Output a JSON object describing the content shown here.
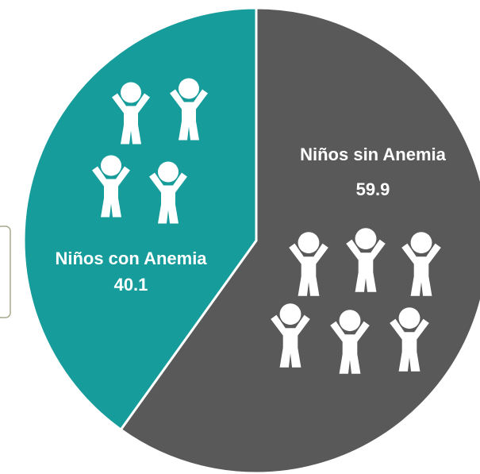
{
  "chart_data": {
    "type": "pie",
    "categories": [
      "Niños sin Anemia",
      "Niños con Anemia"
    ],
    "values": [
      59.9,
      40.1
    ],
    "colors": [
      "#595959",
      "#169c9b"
    ]
  }
}
